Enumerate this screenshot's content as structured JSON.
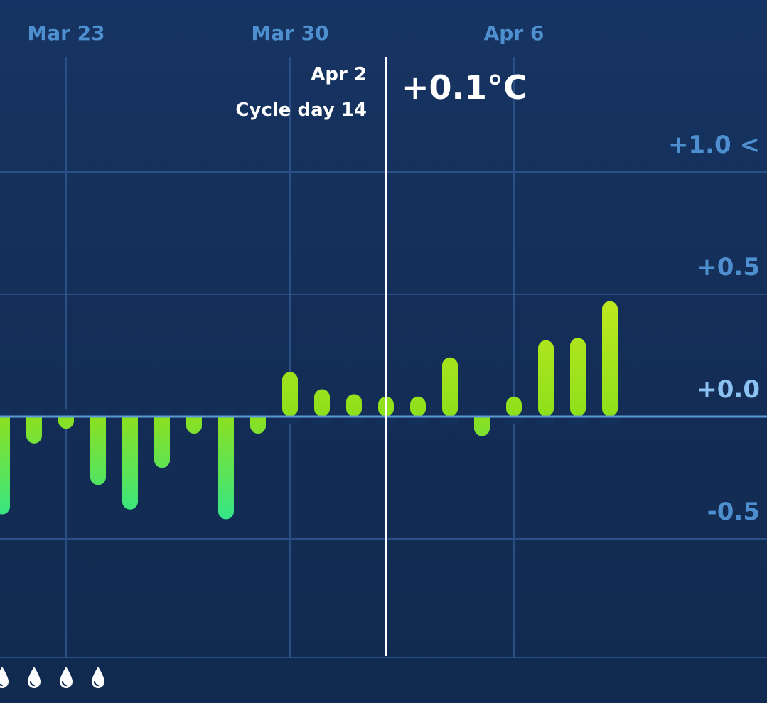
{
  "chart_data": {
    "type": "bar",
    "x_labels": [
      "Mar 23",
      "Mar 30",
      "Apr 6"
    ],
    "y_ticks": [
      "+1.0",
      "+0.5",
      "+0.0",
      "-0.5"
    ],
    "y_tick_values": [
      1.0,
      0.5,
      0.0,
      -0.5
    ],
    "ylim": [
      -1.0,
      1.15
    ],
    "grid": true,
    "categories": [
      "Mar 21",
      "Mar 22",
      "Mar 23",
      "Mar 24",
      "Mar 25",
      "Mar 26",
      "Mar 27",
      "Mar 28",
      "Mar 29",
      "Mar 30",
      "Mar 31",
      "Apr 1",
      "Apr 2",
      "Apr 3",
      "Apr 4",
      "Apr 5",
      "Apr 6",
      "Apr 7",
      "Apr 8",
      "Apr 9"
    ],
    "values": [
      -0.4,
      -0.11,
      -0.05,
      -0.28,
      -0.38,
      -0.21,
      -0.07,
      -0.42,
      -0.07,
      0.15,
      0.08,
      0.06,
      0.05,
      0.05,
      0.21,
      -0.08,
      0.05,
      0.28,
      0.29,
      0.44
    ],
    "selected_index": 12
  },
  "selection": {
    "date": "Apr 2",
    "cycle_day": "Cycle day 14",
    "value": "+0.1°C"
  },
  "scale_arrow": "<",
  "period_markers": {
    "icon": "drop-icon",
    "count": 4
  },
  "colors": {
    "background": "#153260",
    "grid": "#2a4f85",
    "baseline": "#5b9bd5",
    "label": "#4e8fcf",
    "zero_label": "#8cc2f2",
    "bar_top": "#b9e81f",
    "bar_bottom": "#2fe28a",
    "selection_line": "#ffffff"
  }
}
